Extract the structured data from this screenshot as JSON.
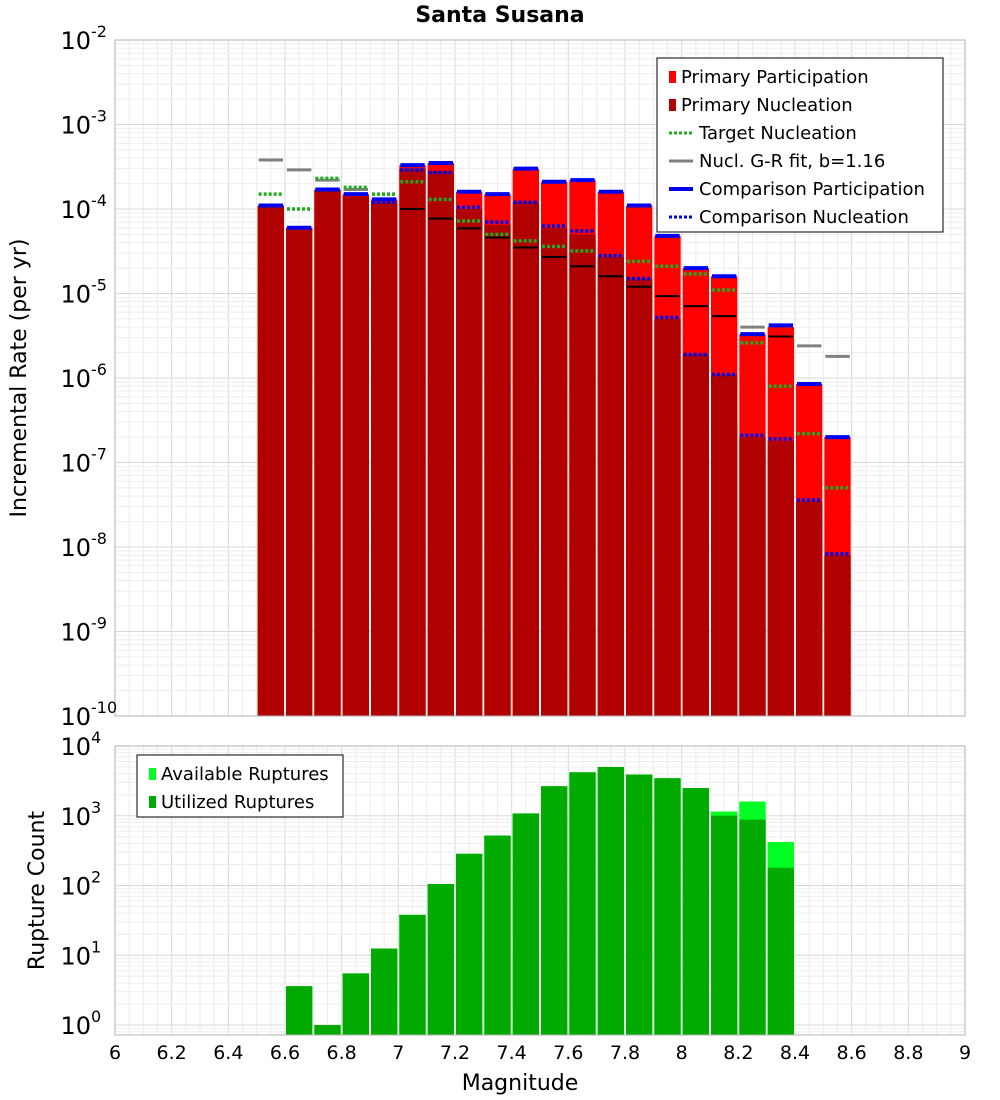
{
  "chart_data": [
    {
      "type": "bar",
      "title": "Santa Susana",
      "ylabel": "Incremental Rate (per yr)",
      "yscale": "log",
      "ylim": [
        1e-10,
        0.01
      ],
      "xlim": [
        6,
        9
      ],
      "bin_width": 0.1,
      "y_ticks": [
        {
          "base": "10",
          "exp": "-10"
        },
        {
          "base": "10",
          "exp": "-9"
        },
        {
          "base": "10",
          "exp": "-8"
        },
        {
          "base": "10",
          "exp": "-7"
        },
        {
          "base": "10",
          "exp": "-6"
        },
        {
          "base": "10",
          "exp": "-5"
        },
        {
          "base": "10",
          "exp": "-4"
        },
        {
          "base": "10",
          "exp": "-3"
        },
        {
          "base": "10",
          "exp": "-2"
        }
      ],
      "colors": {
        "primary_participation": "#ff0000",
        "primary_nucleation": "#b00000",
        "target_nucleation": "#22aa22",
        "gr_fit": "#808080",
        "comparison_participation": "#0000ee",
        "comparison_nucleation": "#0000ee",
        "black_marker": "#000000"
      },
      "legend_position": "top-right",
      "legend": [
        {
          "label": "Primary Participation",
          "style": "box",
          "color": "#ff0000"
        },
        {
          "label": "Primary Nucleation",
          "style": "box",
          "color": "#b00000"
        },
        {
          "label": "Target Nucleation",
          "style": "dotted",
          "color": "#22aa22"
        },
        {
          "label": "Nucl. G-R fit, b=1.16",
          "style": "solid",
          "color": "#808080"
        },
        {
          "label": "Comparison Participation",
          "style": "thick",
          "color": "#0000ee"
        },
        {
          "label": "Comparison Nucleation",
          "style": "dotted",
          "color": "#0000ee"
        }
      ],
      "x": [
        6.55,
        6.65,
        6.75,
        6.85,
        6.95,
        7.05,
        7.15,
        7.25,
        7.35,
        7.45,
        7.55,
        7.65,
        7.75,
        7.85,
        7.95,
        8.05,
        8.15,
        8.25,
        8.35,
        8.45,
        8.55
      ],
      "series": [
        {
          "name": "Primary Participation",
          "values": [
            0.00011,
            6e-05,
            0.00017,
            0.00015,
            0.00013,
            0.00033,
            0.00035,
            0.00016,
            0.00015,
            0.0003,
            0.00021,
            0.00022,
            0.00016,
            0.00011,
            4.8e-05,
            2e-05,
            1.6e-05,
            3.3e-06,
            4e-06,
            8.5e-07,
            2e-07
          ]
        },
        {
          "name": "Primary Nucleation",
          "values": [
            0.00011,
            6e-05,
            0.00017,
            0.00014,
            0.00012,
            0.0003,
            0.00028,
            0.0001,
            6.5e-05,
            0.00012,
            6e-05,
            5e-05,
            2.7e-05,
            1.5e-05,
            5e-06,
            1.9e-06,
            1.1e-06,
            2e-07,
            1.8e-07,
            3.5e-08,
            8e-09
          ]
        },
        {
          "name": "Target Nucleation",
          "values": [
            0.00015,
            0.0001,
            0.00023,
            0.00018,
            0.00015,
            0.00021,
            0.00013,
            7.2e-05,
            5e-05,
            4.2e-05,
            3.6e-05,
            3.2e-05,
            2.8e-05,
            2.4e-05,
            2.1e-05,
            1.7e-05,
            1.1e-05,
            2.6e-06,
            8e-07,
            2.2e-07,
            5e-08
          ]
        },
        {
          "name": "Nucl. G-R fit, b=1.16",
          "values": [
            0.00038,
            0.00029,
            0.00022,
            0.00017,
            0.00013,
            null,
            null,
            null,
            null,
            null,
            null,
            null,
            null,
            null,
            null,
            null,
            null,
            4e-06,
            null,
            2.4e-06,
            1.8e-06
          ]
        },
        {
          "name": "Comparison Participation",
          "values": [
            0.00011,
            6e-05,
            0.00017,
            0.00015,
            0.00013,
            0.00033,
            0.00035,
            0.00016,
            0.00015,
            0.0003,
            0.00021,
            0.00022,
            0.00016,
            0.00011,
            4.8e-05,
            2e-05,
            1.6e-05,
            3.3e-06,
            4.2e-06,
            8.5e-07,
            2e-07
          ]
        },
        {
          "name": "Comparison Nucleation",
          "values": [
            null,
            null,
            null,
            null,
            0.00012,
            0.00029,
            0.00027,
            0.000105,
            7e-05,
            0.00012,
            6.3e-05,
            5.5e-05,
            2.8e-05,
            1.5e-05,
            5.2e-06,
            1.9e-06,
            1.1e-06,
            2.1e-07,
            1.9e-07,
            3.6e-08,
            8.3e-09
          ]
        }
      ],
      "black_markers": [
        null,
        null,
        null,
        null,
        null,
        0.0001,
        7.7e-05,
        5.9e-05,
        4.6e-05,
        3.5e-05,
        2.7e-05,
        2.1e-05,
        1.6e-05,
        1.2e-05,
        9.3e-06,
        7.1e-06,
        5.4e-06,
        null,
        3.1e-06,
        null,
        null
      ]
    },
    {
      "type": "bar",
      "title": "",
      "xlabel": "Magnitude",
      "ylabel": "Rupture Count",
      "yscale": "log",
      "ylim": [
        0.72,
        10000.0
      ],
      "xlim": [
        6,
        9
      ],
      "bin_width": 0.1,
      "x_ticks": [
        "6",
        "6.2",
        "6.4",
        "6.6",
        "6.8",
        "7",
        "7.2",
        "7.4",
        "7.6",
        "7.8",
        "8",
        "8.2",
        "8.4",
        "8.6",
        "8.8",
        "9"
      ],
      "y_ticks": [
        {
          "base": "10",
          "exp": "0"
        },
        {
          "base": "10",
          "exp": "1"
        },
        {
          "base": "10",
          "exp": "2"
        },
        {
          "base": "10",
          "exp": "3"
        },
        {
          "base": "10",
          "exp": "4"
        }
      ],
      "colors": {
        "available": "#00ff22",
        "utilized": "#00aa00"
      },
      "legend_position": "top-left",
      "legend": [
        {
          "label": "Available Ruptures",
          "style": "box",
          "color": "#00ff22"
        },
        {
          "label": "Utilized Ruptures",
          "style": "box",
          "color": "#00aa00"
        }
      ],
      "x": [
        6.65,
        6.75,
        6.85,
        6.95,
        7.05,
        7.15,
        7.25,
        7.35,
        7.45,
        7.55,
        7.65,
        7.75,
        7.85,
        7.95,
        8.05,
        8.15,
        8.25,
        8.35
      ],
      "series": [
        {
          "name": "Available Ruptures",
          "values": [
            3.6,
            1.0,
            5.5,
            12.5,
            38,
            105,
            285,
            520,
            1080,
            2650,
            4200,
            5000,
            3900,
            3450,
            2500,
            1150,
            1600,
            420
          ]
        },
        {
          "name": "Utilized Ruptures",
          "values": [
            3.6,
            1.0,
            5.5,
            12.5,
            38,
            105,
            285,
            520,
            1080,
            2650,
            4200,
            5000,
            3900,
            3450,
            2500,
            1000,
            880,
            180
          ]
        }
      ]
    }
  ]
}
